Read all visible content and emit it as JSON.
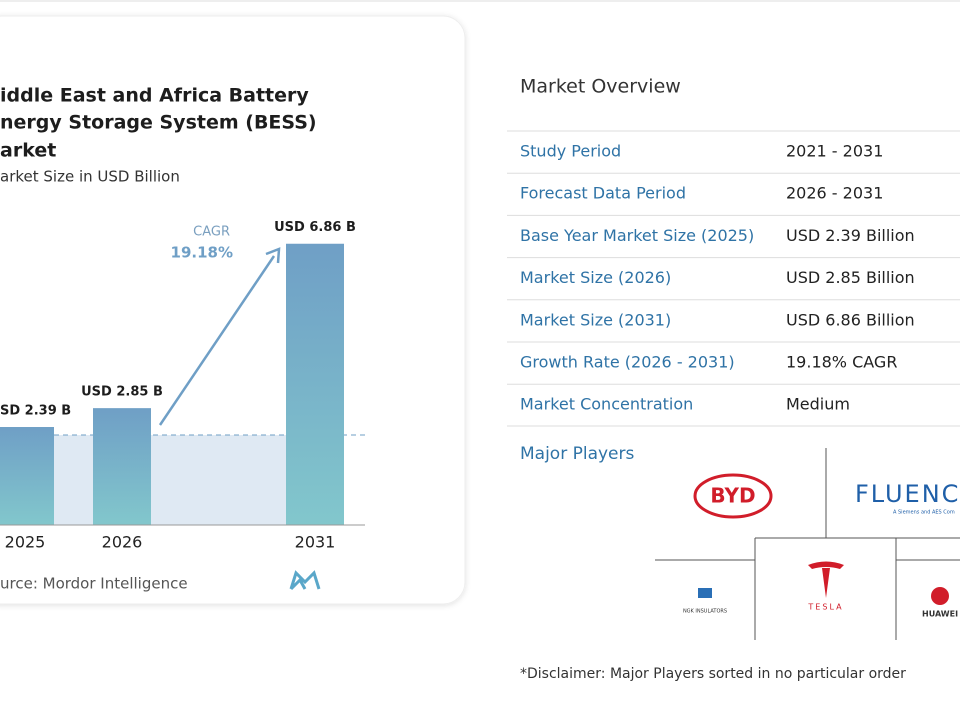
{
  "chart_data": {
    "type": "bar",
    "title_lines": [
      "iddle East and Africa Battery",
      "nergy Storage System (BESS)",
      "arket"
    ],
    "subtitle": "arket Size in USD Billion",
    "categories": [
      "2025",
      "2026",
      "2031"
    ],
    "values": [
      2.39,
      2.85,
      6.86
    ],
    "value_labels": [
      "SD 2.39 B",
      "USD 2.85 B",
      "USD 6.86 B"
    ],
    "color": "#6f9fc6",
    "annotation": {
      "label": "CAGR",
      "value": "19.18%"
    },
    "source": "urce:  Mordor Intelligence"
  },
  "market_overview": {
    "title": "Market Overview",
    "rows": [
      [
        "Study Period",
        "2021 - 2031"
      ],
      [
        "Forecast Data Period",
        "2026 - 2031"
      ],
      [
        "Base Year Market Size (2025)",
        "USD 2.39 Billion"
      ],
      [
        "Market Size (2026)",
        "USD 2.85 Billion"
      ],
      [
        "Market Size (2031)",
        "USD 6.86 Billion"
      ],
      [
        "Growth Rate (2026 - 2031)",
        "19.18% CAGR"
      ],
      [
        "Market Concentration",
        "Medium"
      ]
    ],
    "major_players_title": "Major Players",
    "players": {
      "byd": "BYD",
      "fluence": "FLUENC",
      "fluence_sub": "A Siemens and AES Com",
      "tesla": "TESLA",
      "ngk": "NGK INSULATORS",
      "huawei": "HUAWEI"
    },
    "disclaimer": "*Disclaimer: Major Players sorted in no particular order"
  }
}
